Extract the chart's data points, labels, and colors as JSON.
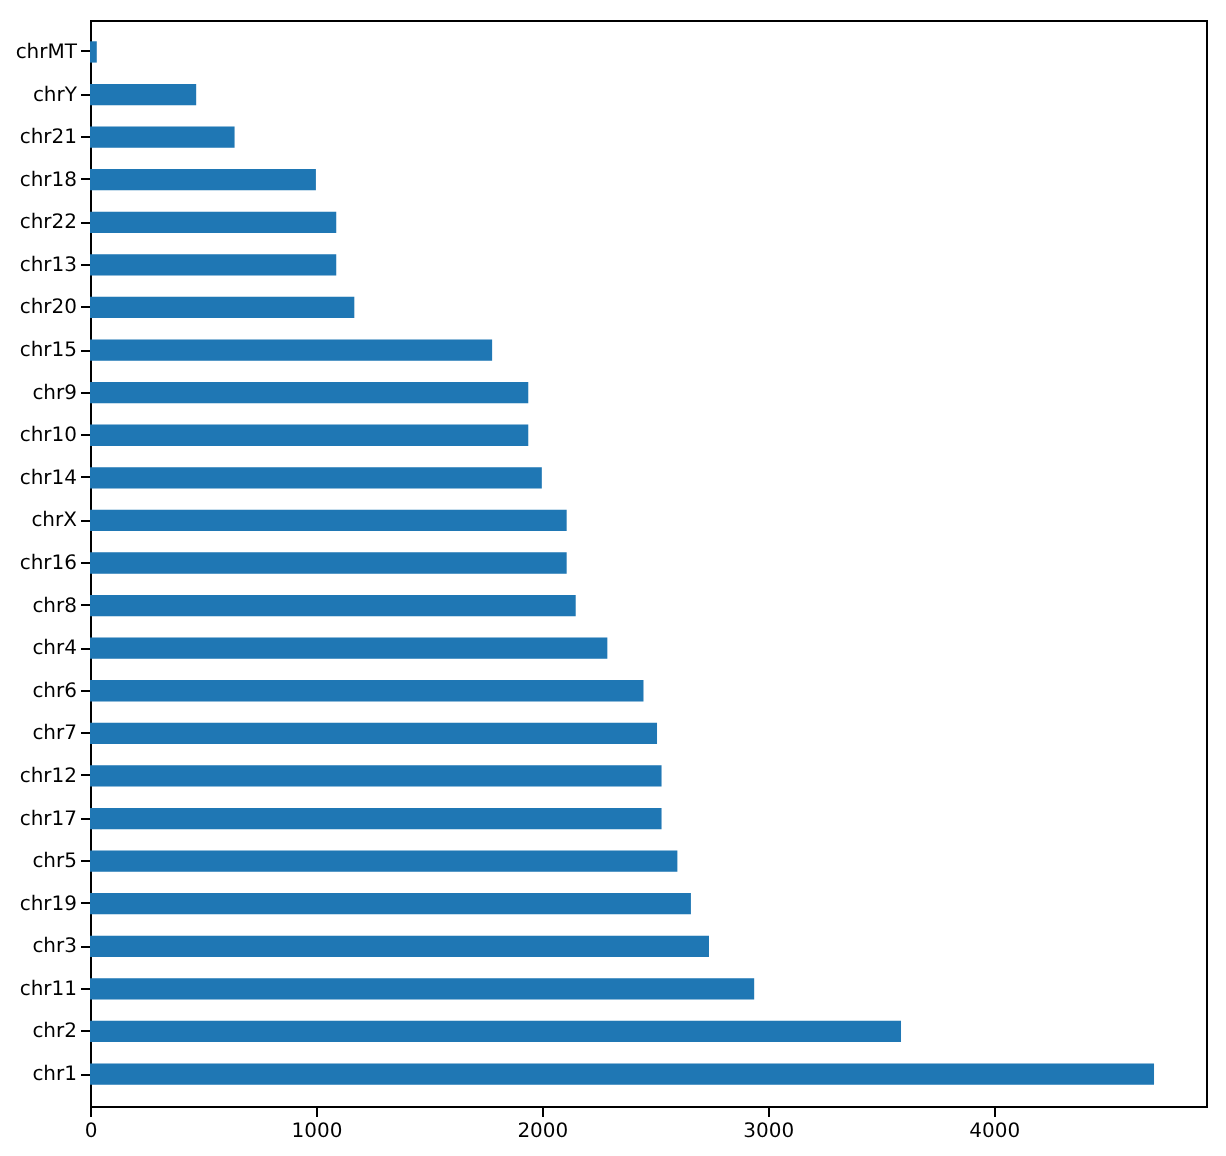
{
  "chart_data": {
    "type": "bar",
    "orientation": "horizontal",
    "categories": [
      "chrMT",
      "chrY",
      "chr21",
      "chr18",
      "chr22",
      "chr13",
      "chr20",
      "chr15",
      "chr9",
      "chr10",
      "chr14",
      "chrX",
      "chr16",
      "chr8",
      "chr4",
      "chr6",
      "chr7",
      "chr12",
      "chr17",
      "chr5",
      "chr19",
      "chr3",
      "chr11",
      "chr2",
      "chr1"
    ],
    "values": [
      30,
      470,
      640,
      1000,
      1090,
      1090,
      1170,
      1780,
      1940,
      1940,
      2000,
      2110,
      2110,
      2150,
      2290,
      2450,
      2510,
      2530,
      2530,
      2600,
      2660,
      2740,
      2940,
      3590,
      4710
    ],
    "color": "#1f77b4",
    "xlim": [
      0,
      4940
    ],
    "xticks": [
      0,
      1000,
      2000,
      3000,
      4000
    ],
    "grid": false
  }
}
